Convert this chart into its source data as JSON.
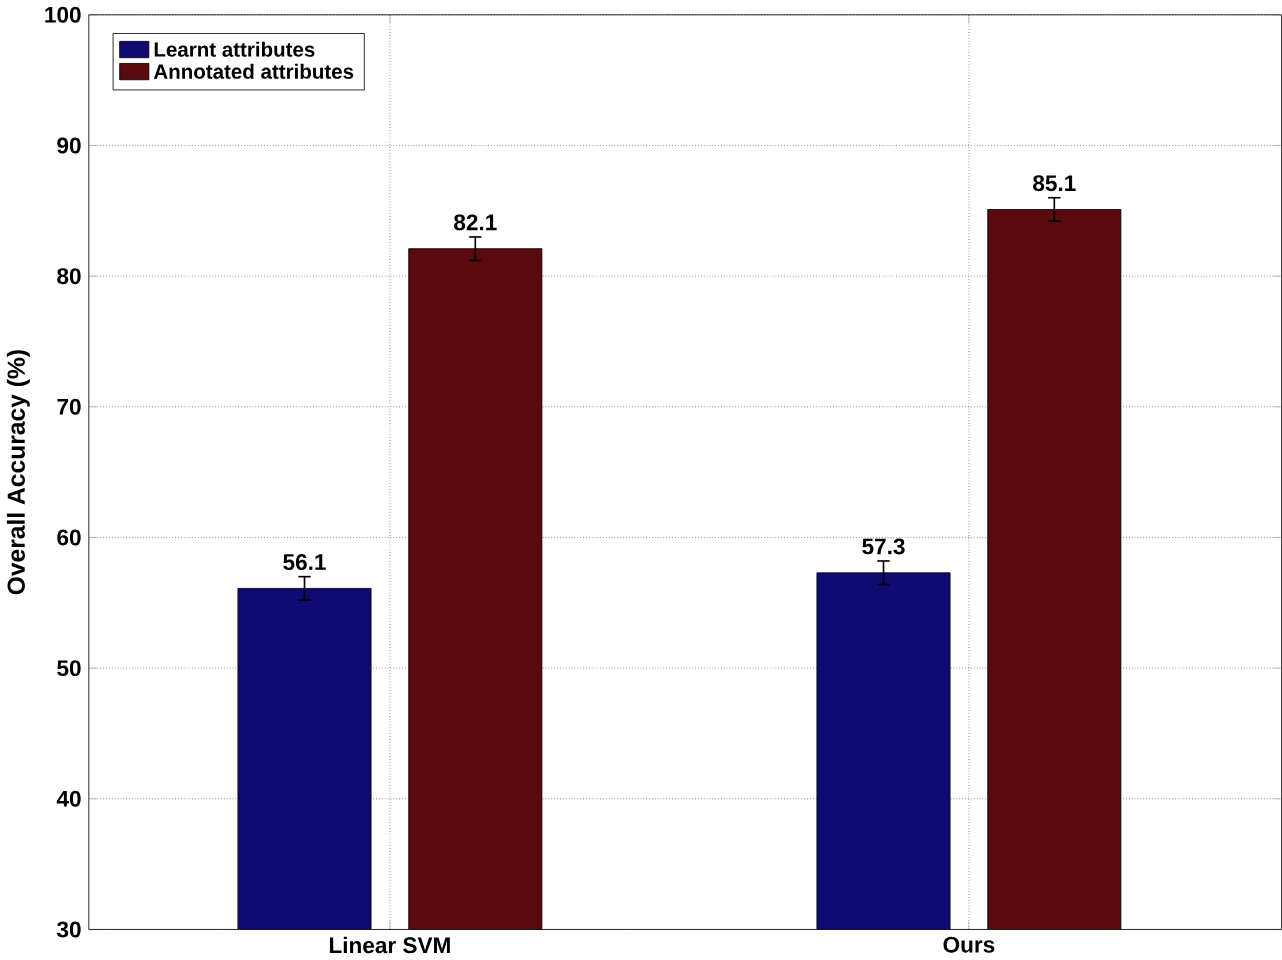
{
  "chart_data": {
    "type": "bar",
    "ylabel": "Overall Accuracy (%)",
    "categories": [
      "Linear SVM",
      "Ours"
    ],
    "series": [
      {
        "name": "Learnt attributes",
        "color": "#0f0a72",
        "values": [
          56.1,
          57.3
        ],
        "errors": [
          0.9,
          0.9
        ]
      },
      {
        "name": "Annotated attributes",
        "color": "#5a0a0e",
        "values": [
          82.1,
          85.1
        ],
        "errors": [
          0.9,
          0.9
        ]
      }
    ],
    "ylim": [
      30,
      100
    ],
    "yticks": [
      30,
      40,
      50,
      60,
      70,
      80,
      90,
      100
    ],
    "grid": true,
    "legend": "top left",
    "data_labels": true
  }
}
